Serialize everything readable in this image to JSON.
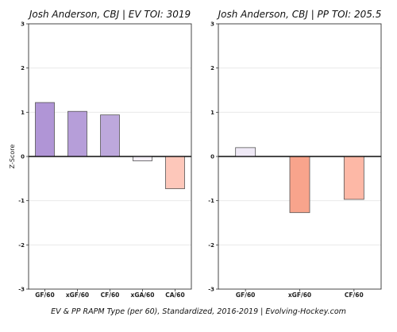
{
  "chart_data": [
    {
      "type": "bar",
      "title": "Josh Anderson, CBJ  |  EV TOI: 3019",
      "ylabel": "Z-Score",
      "ylim": [
        -3,
        3
      ],
      "yticks": [
        -3,
        -2,
        -1,
        0,
        1,
        2,
        3
      ],
      "grid": "horizontal",
      "categories": [
        "GF/60",
        "xGF/60",
        "CF/60",
        "xGA/60",
        "CA/60"
      ],
      "values": [
        1.22,
        1.02,
        0.94,
        -0.1,
        -0.73
      ],
      "colors": [
        "#b095d6",
        "#b69ed9",
        "#bda8dc",
        "#f6f1f8",
        "#fdc7ba"
      ]
    },
    {
      "type": "bar",
      "title": "Josh Anderson, CBJ  |  PP TOI: 205.5",
      "ylabel": "",
      "ylim": [
        -3,
        3
      ],
      "yticks": [
        -3,
        -2,
        -1,
        0,
        1,
        2,
        3
      ],
      "grid": "horizontal",
      "categories": [
        "GF/60",
        "xGF/60",
        "CF/60"
      ],
      "values": [
        0.2,
        -1.27,
        -0.97
      ],
      "colors": [
        "#efe9f6",
        "#f8a48c",
        "#fdb8a6"
      ]
    }
  ],
  "footer": "EV & PP RAPM Type (per 60), Standardized, 2016-2019    |    Evolving-Hockey.com"
}
